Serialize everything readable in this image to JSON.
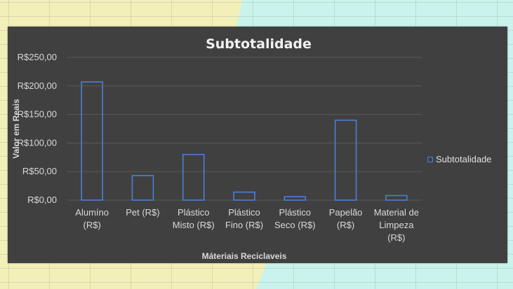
{
  "chart_data": {
    "type": "bar",
    "title": "Subtotalidade",
    "xlabel": "Máteriais Reciclaveis",
    "ylabel": "Valor em Reais",
    "categories": [
      [
        "Alumíno",
        "(R$)"
      ],
      [
        "Pet (R$)"
      ],
      [
        "Plástico",
        "Misto (R$)"
      ],
      [
        "Plástico",
        "Fino (R$)"
      ],
      [
        "Plástico",
        "Seco (R$)"
      ],
      [
        "Papelão",
        "(R$)"
      ],
      [
        "Material de",
        "Limpeza",
        "(R$)"
      ]
    ],
    "series": [
      {
        "name": "Subtotalidade",
        "values": [
          207,
          43,
          80,
          14,
          6,
          140,
          8
        ]
      }
    ],
    "ylim": [
      0,
      250
    ],
    "yticks": [
      0,
      50,
      100,
      150,
      200,
      250
    ],
    "ytick_labels": [
      "R$0,00",
      "R$50,00",
      "R$100,00",
      "R$150,00",
      "R$200,00",
      "R$250,00"
    ],
    "grid": true,
    "legend": "right",
    "colors": {
      "panel": "#404040",
      "bar_border": "#4a7fd6",
      "grid": "#595959"
    }
  }
}
